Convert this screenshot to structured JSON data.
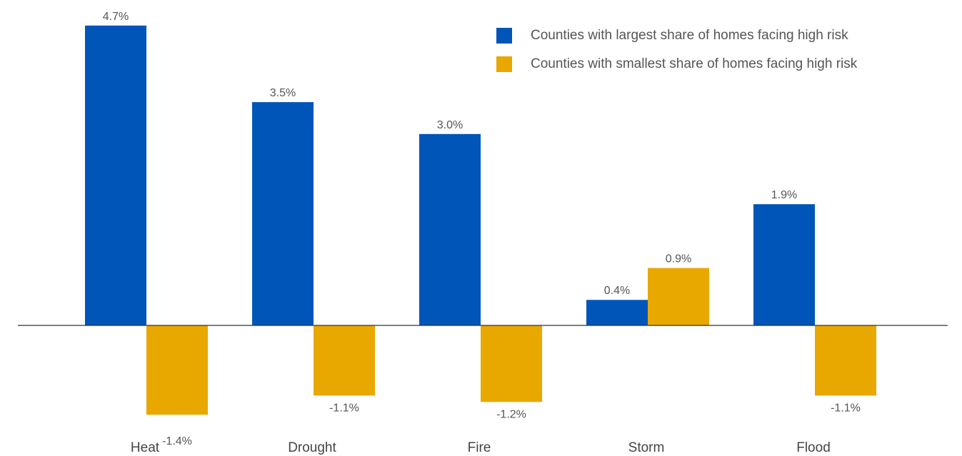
{
  "chart_data": {
    "type": "bar",
    "categories": [
      "Heat",
      "Drought",
      "Fire",
      "Storm",
      "Flood"
    ],
    "series": [
      {
        "name": "Counties with largest share of homes facing high risk",
        "color": "#0055b8",
        "values": [
          4.7,
          3.5,
          3.0,
          0.4,
          1.9
        ],
        "labels": [
          "4.7%",
          "3.5%",
          "3.0%",
          "0.4%",
          "1.9%"
        ]
      },
      {
        "name": "Counties with smallest share of homes facing high risk",
        "color": "#e8a800",
        "values": [
          -1.4,
          -1.1,
          -1.2,
          0.9,
          -1.1
        ],
        "labels": [
          "-1.4%",
          "-1.1%",
          "-1.2%",
          "0.9%",
          "-1.1%"
        ]
      }
    ],
    "title": "",
    "xlabel": "",
    "ylabel": "",
    "ylim": [
      -2.0,
      5.0
    ],
    "grid": false,
    "legend_position": "top-right",
    "label_color": "#555555",
    "axis_color": "#333333"
  }
}
